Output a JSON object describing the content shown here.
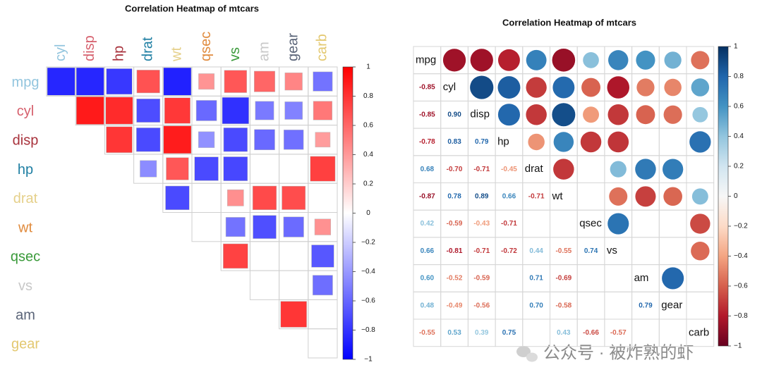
{
  "chart_data": [
    {
      "type": "heatmap",
      "title": "Correlation Heatmap of mtcars",
      "x_categories": [
        "cyl",
        "disp",
        "hp",
        "drat",
        "wt",
        "qsec",
        "vs",
        "am",
        "gear",
        "carb"
      ],
      "y_categories": [
        "mpg",
        "cyl",
        "disp",
        "hp",
        "drat",
        "wt",
        "qsec",
        "vs",
        "am",
        "gear"
      ],
      "label_colors": [
        "#92c5de",
        "#d6606d",
        "#a8323c",
        "#1f7fa3",
        "#e5d08a",
        "#e08a3c",
        "#3a9a3a",
        "#c8c8c8",
        "#5a6478",
        "#e3c870"
      ],
      "values": [
        [
          -0.85,
          -0.85,
          -0.78,
          0.68,
          -0.87,
          0.42,
          0.66,
          0.6,
          0.48,
          -0.55
        ],
        [
          0.9,
          0.83,
          -0.7,
          0.78,
          -0.59,
          -0.81,
          -0.52,
          -0.49,
          0.53
        ],
        [
          0.79,
          -0.71,
          0.89,
          -0.43,
          -0.71,
          -0.59,
          -0.56,
          0.39
        ],
        [
          -0.45,
          0.66,
          -0.71,
          -0.72,
          null,
          null,
          0.75
        ],
        [
          -0.71,
          null,
          0.44,
          0.71,
          0.7,
          null
        ],
        [
          null,
          -0.55,
          -0.69,
          -0.58,
          0.43
        ],
        [
          0.74,
          null,
          null,
          -0.66
        ],
        [
          null,
          null,
          -0.57
        ],
        [
          0.79,
          null
        ],
        [
          null
        ]
      ],
      "colormap": [
        "#0000ff",
        "#ffffff",
        "#ff0000"
      ],
      "clim": [
        -1,
        1
      ],
      "cticks": [
        1,
        0.8,
        0.6,
        0.4,
        0.2,
        0,
        {
          "value": -0.2,
          "label": "−0.2"
        },
        {
          "value": -0.4,
          "label": "−0.4"
        },
        {
          "value": -0.6,
          "label": "−0.6"
        },
        {
          "value": -0.8,
          "label": "−0.8"
        },
        {
          "value": -1,
          "label": "−1"
        }
      ]
    },
    {
      "type": "corrplot",
      "title": "Correlation Heatmap of mtcars",
      "variables": [
        "mpg",
        "cyl",
        "disp",
        "hp",
        "drat",
        "wt",
        "qsec",
        "vs",
        "am",
        "gear",
        "carb"
      ],
      "values": [
        [],
        [
          -0.85
        ],
        [
          -0.85,
          0.9
        ],
        [
          -0.78,
          0.83,
          0.79
        ],
        [
          0.68,
          -0.7,
          -0.71,
          -0.45
        ],
        [
          -0.87,
          0.78,
          0.89,
          0.66,
          -0.71
        ],
        [
          0.42,
          -0.59,
          -0.43,
          -0.71,
          null,
          null
        ],
        [
          0.66,
          -0.81,
          -0.71,
          -0.72,
          0.44,
          -0.55,
          0.74
        ],
        [
          0.6,
          -0.52,
          -0.59,
          null,
          0.71,
          -0.69,
          null,
          null
        ],
        [
          0.48,
          -0.49,
          -0.56,
          null,
          0.7,
          -0.58,
          null,
          null,
          0.79
        ],
        [
          -0.55,
          0.53,
          0.39,
          0.75,
          null,
          0.43,
          -0.66,
          -0.57,
          null,
          null
        ]
      ],
      "value_labels": [
        [],
        [
          "-0.85"
        ],
        [
          "-0.85",
          "0.90"
        ],
        [
          "-0.78",
          "0.83",
          "0.79"
        ],
        [
          "0.68",
          "-0.70",
          "-0.71",
          "-0.45"
        ],
        [
          "-0.87",
          "0.78",
          "0.89",
          "0.66",
          "-0.71"
        ],
        [
          "0.42",
          "-0.59",
          "-0.43",
          "-0.71",
          null,
          null
        ],
        [
          "0.66",
          "-0.81",
          "-0.71",
          "-0.72",
          "0.44",
          "-0.55",
          "0.74"
        ],
        [
          "0.60",
          "-0.52",
          "-0.59",
          null,
          "0.71",
          "-0.69",
          null,
          null
        ],
        [
          "0.48",
          "-0.49",
          "-0.56",
          null,
          "0.70",
          "-0.58",
          null,
          null,
          "0.79"
        ],
        [
          "-0.55",
          "0.53",
          "0.39",
          "0.75",
          null,
          "0.43",
          "-0.66",
          "-0.57",
          null,
          null
        ]
      ],
      "colormap": [
        "#67001f",
        "#b2182b",
        "#d6604d",
        "#f4a582",
        "#fddbc7",
        "#f7f7f7",
        "#d1e5f0",
        "#92c5de",
        "#4393c3",
        "#2166ac",
        "#053061"
      ],
      "clim": [
        -1,
        1
      ],
      "cticks": [
        1,
        0.8,
        0.6,
        0.4,
        0.2,
        0,
        {
          "value": -0.2,
          "label": "−0.2"
        },
        {
          "value": -0.4,
          "label": "−0.4"
        },
        {
          "value": -0.6,
          "label": "−0.6"
        },
        {
          "value": -0.8,
          "label": "−0.8"
        },
        {
          "value": -1,
          "label": "−1"
        }
      ]
    }
  ],
  "watermark": "公众号 · 被炸熟的虾"
}
